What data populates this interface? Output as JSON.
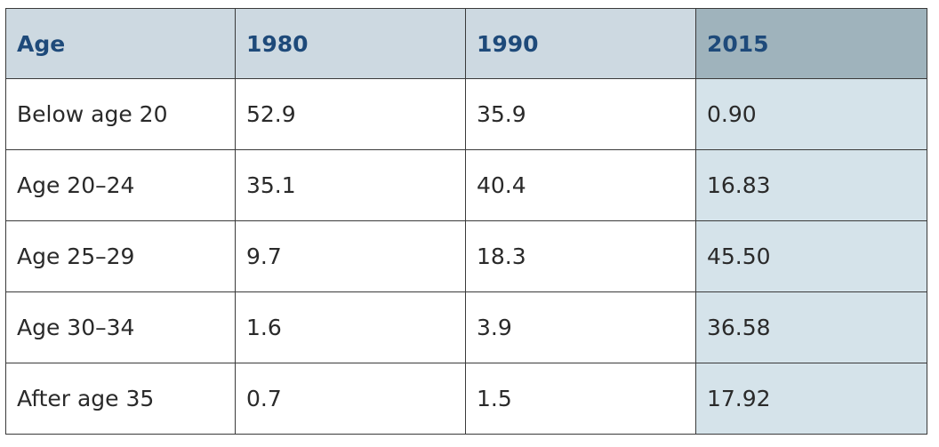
{
  "table": {
    "headers": [
      "Age",
      "1980",
      "1990",
      "2015"
    ],
    "rows": [
      [
        "Below age 20",
        "52.9",
        "35.9",
        "0.90"
      ],
      [
        "Age 20–24",
        "35.1",
        "40.4",
        "16.83"
      ],
      [
        "Age 25–29",
        "9.7",
        "18.3",
        "45.50"
      ],
      [
        "Age 30–34",
        "1.6",
        "3.9",
        "36.58"
      ],
      [
        "After age 35",
        "0.7",
        "1.5",
        "17.92"
      ]
    ]
  },
  "colors": {
    "header_bg": "#cdd9e1",
    "header_highlight_bg": "#9fb3bc",
    "header_text": "#1e4a7a",
    "highlight_column_bg": "#d5e3ea",
    "border": "#3a3a3a",
    "body_text": "#2a2a2a"
  }
}
